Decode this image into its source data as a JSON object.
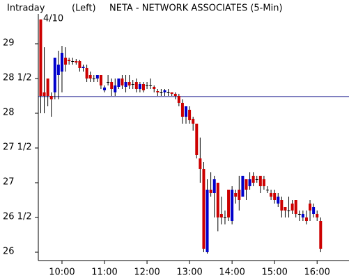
{
  "chart_data": {
    "type": "candlestick",
    "title": "NETA - NETWORK ASSOCIATES  (5-Min)",
    "period": "Intraday",
    "axis_side": "(Left)",
    "date": "4/10",
    "up_color": "#0000cc",
    "down_color": "#cc0000",
    "wick_color": "#000000",
    "reference_line": 28.24,
    "reference_color": "#000080",
    "x": [
      570,
      575,
      580,
      585,
      590,
      595,
      600,
      605,
      610,
      615,
      620,
      625,
      630,
      635,
      640,
      645,
      650,
      655,
      660,
      665,
      670,
      675,
      680,
      685,
      690,
      695,
      700,
      705,
      710,
      715,
      720,
      725,
      730,
      735,
      740,
      745,
      750,
      755,
      760,
      765,
      770,
      775,
      780,
      785,
      790,
      795,
      800,
      805,
      810,
      815,
      820,
      825,
      830,
      835,
      840,
      845,
      850,
      855,
      860,
      865,
      870,
      875,
      880,
      885,
      890,
      895,
      900,
      905,
      910,
      915,
      920,
      925,
      930,
      935,
      940,
      945,
      950,
      955,
      960,
      965
    ],
    "open": [
      29.35,
      28.3,
      28.5,
      28.25,
      28.3,
      28.55,
      28.6,
      28.8,
      28.77,
      28.75,
      28.75,
      28.75,
      28.65,
      28.65,
      28.55,
      28.5,
      28.5,
      28.55,
      28.33,
      28.45,
      28.45,
      28.3,
      28.38,
      28.5,
      28.38,
      28.45,
      28.42,
      28.45,
      28.35,
      28.42,
      28.4,
      28.4,
      28.38,
      28.32,
      28.3,
      28.3,
      28.3,
      28.3,
      28.28,
      28.25,
      28.15,
      27.95,
      28.05,
      27.92,
      27.85,
      27.35,
      27.2,
      26.0,
      26.9,
      26.85,
      27.0,
      26.55,
      26.5,
      26.9,
      26.45,
      26.85,
      26.9,
      26.8,
      27.05,
      26.95,
      27.1,
      27.05,
      27.1,
      27.05,
      26.9,
      26.85,
      26.85,
      26.7,
      26.75,
      26.65,
      26.6,
      26.7,
      26.75,
      26.55,
      26.5,
      26.5,
      26.7,
      26.55,
      26.55,
      26.45
    ],
    "high": [
      29.35,
      28.95,
      28.5,
      28.3,
      28.8,
      28.9,
      28.97,
      28.95,
      28.8,
      28.8,
      28.78,
      28.77,
      28.7,
      28.7,
      28.6,
      28.55,
      28.55,
      28.55,
      28.4,
      28.55,
      28.5,
      28.5,
      28.5,
      28.55,
      28.55,
      28.55,
      28.48,
      28.5,
      28.45,
      28.45,
      28.45,
      28.5,
      28.4,
      28.35,
      28.35,
      28.35,
      28.35,
      28.3,
      28.3,
      28.28,
      28.2,
      28.1,
      28.1,
      27.95,
      27.85,
      27.65,
      27.3,
      27.05,
      27.15,
      27.1,
      27.0,
      26.8,
      26.6,
      26.9,
      26.95,
      26.9,
      27.1,
      27.1,
      27.05,
      27.15,
      27.15,
      27.1,
      27.1,
      27.1,
      26.95,
      26.9,
      26.9,
      26.85,
      26.8,
      26.65,
      26.8,
      26.75,
      26.75,
      26.6,
      26.6,
      26.6,
      26.75,
      26.7,
      26.6,
      26.5
    ],
    "low": [
      28.0,
      28.0,
      28.1,
      27.95,
      28.2,
      28.2,
      28.3,
      28.6,
      28.7,
      28.7,
      28.7,
      28.6,
      28.6,
      28.45,
      28.45,
      28.45,
      28.45,
      28.35,
      28.3,
      28.4,
      28.25,
      28.25,
      28.35,
      28.35,
      28.3,
      28.35,
      28.35,
      28.3,
      28.3,
      28.3,
      28.35,
      28.35,
      28.3,
      28.25,
      28.25,
      28.25,
      28.25,
      28.25,
      28.2,
      28.1,
      27.85,
      27.85,
      27.85,
      27.75,
      27.35,
      27.0,
      26.0,
      25.98,
      26.8,
      26.5,
      26.3,
      26.4,
      26.4,
      26.45,
      26.4,
      26.7,
      26.6,
      26.8,
      26.75,
      26.9,
      26.95,
      27.0,
      26.85,
      26.9,
      26.85,
      26.75,
      26.7,
      26.65,
      26.5,
      26.5,
      26.5,
      26.55,
      26.5,
      26.45,
      26.45,
      26.4,
      26.45,
      26.5,
      26.45,
      26.0
    ],
    "close": [
      28.25,
      28.25,
      28.25,
      28.2,
      28.8,
      28.7,
      28.87,
      28.7,
      28.75,
      28.75,
      28.73,
      28.65,
      28.67,
      28.5,
      28.5,
      28.5,
      28.55,
      28.4,
      28.37,
      28.45,
      28.35,
      28.4,
      28.5,
      28.4,
      28.45,
      28.4,
      28.42,
      28.35,
      28.42,
      28.33,
      28.4,
      28.4,
      28.35,
      28.3,
      28.3,
      28.33,
      28.3,
      28.28,
      28.25,
      28.15,
      27.95,
      28.1,
      27.9,
      27.85,
      27.4,
      27.2,
      26.05,
      26.9,
      26.85,
      27.05,
      26.5,
      26.5,
      26.5,
      26.5,
      26.9,
      26.8,
      26.75,
      27.1,
      26.9,
      27.05,
      27.0,
      27.05,
      26.95,
      26.95,
      26.9,
      26.8,
      26.75,
      26.8,
      26.6,
      26.6,
      26.6,
      26.6,
      26.55,
      26.55,
      26.55,
      26.45,
      26.6,
      26.65,
      26.5,
      26.05
    ],
    "xlim": [
      566.6,
      1005
    ],
    "xticks": [
      {
        "value": 600,
        "label": "10:00"
      },
      {
        "value": 660,
        "label": "11:00"
      },
      {
        "value": 720,
        "label": "12:00"
      },
      {
        "value": 780,
        "label": "13:00"
      },
      {
        "value": 840,
        "label": "14:00"
      },
      {
        "value": 900,
        "label": "15:00"
      },
      {
        "value": 960,
        "label": "16:00"
      }
    ],
    "ylim": [
      25.88,
      29.43
    ],
    "yticks": [
      26,
      {
        "value": 26.5,
        "label": "26 1/2"
      },
      27,
      {
        "value": 27.5,
        "label": "27 1/2"
      },
      28,
      {
        "value": 28.5,
        "label": "28 1/2"
      },
      29
    ]
  }
}
